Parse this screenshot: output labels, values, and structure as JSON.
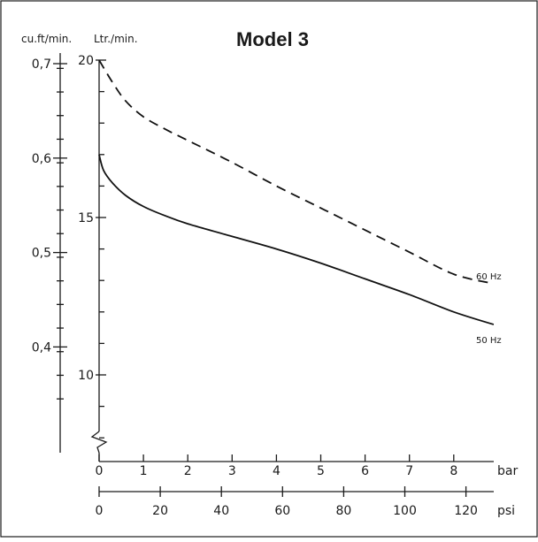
{
  "chart_data": {
    "type": "line",
    "title": "Model 3",
    "left_axis_unit": "cu.ft/min.",
    "right_axis_unit": "Ltr./min.",
    "cuft_ticks": [
      "0,7",
      "0,6",
      "0,5",
      "0,4"
    ],
    "ltr_ticks": [
      "20",
      "15",
      "10"
    ],
    "bar_unit": "bar",
    "psi_unit": "psi",
    "bar_ticks": [
      "0",
      "1",
      "2",
      "3",
      "4",
      "5",
      "6",
      "7",
      "8"
    ],
    "psi_ticks": [
      "0",
      "20",
      "40",
      "60",
      "80",
      "100",
      "120"
    ],
    "x_range_bar": [
      0,
      8.9
    ],
    "y_range_ltr": [
      7.2,
      20
    ],
    "series": [
      {
        "name": "60 Hz",
        "style": "dashed",
        "x": [
          0,
          0.3,
          0.6,
          1,
          1.5,
          2,
          3,
          4,
          5,
          6,
          7,
          8,
          8.9
        ],
        "y": [
          20.0,
          19.3,
          18.7,
          18.2,
          17.8,
          17.45,
          16.75,
          16.0,
          15.3,
          14.6,
          13.9,
          13.2,
          12.9
        ]
      },
      {
        "name": "50 Hz",
        "style": "solid",
        "x": [
          0,
          0.1,
          0.3,
          0.6,
          1,
          1.5,
          2,
          3,
          4,
          5,
          6,
          7,
          8,
          8.9
        ],
        "y": [
          17.0,
          16.5,
          16.1,
          15.7,
          15.35,
          15.05,
          14.8,
          14.4,
          14.0,
          13.55,
          13.05,
          12.55,
          12.0,
          11.6
        ]
      }
    ]
  }
}
